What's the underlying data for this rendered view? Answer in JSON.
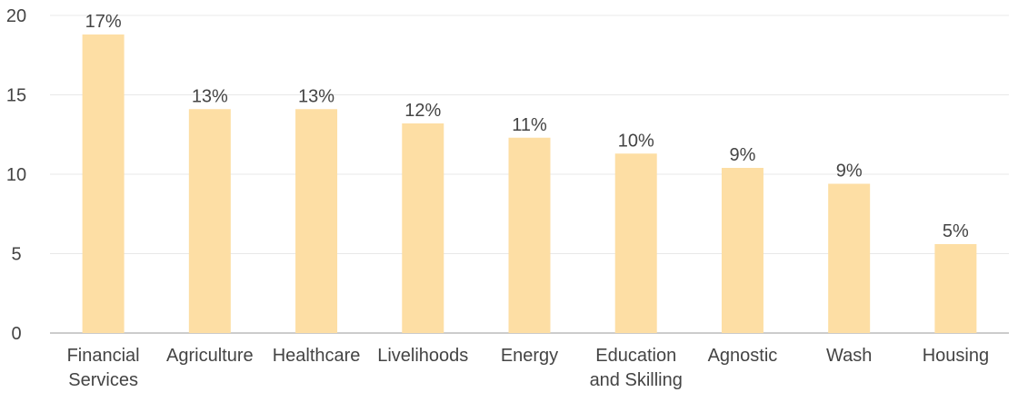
{
  "chart_data": {
    "type": "bar",
    "categories": [
      "Financial Services",
      "Agriculture",
      "Healthcare",
      "Livelihoods",
      "Energy",
      "Education and Skilling",
      "Agnostic",
      "Wash",
      "Housing"
    ],
    "category_lines": [
      [
        "Financial",
        "Services"
      ],
      [
        "Agriculture"
      ],
      [
        "Healthcare"
      ],
      [
        "Livelihoods"
      ],
      [
        "Energy"
      ],
      [
        "Education",
        "and Skilling"
      ],
      [
        "Agnostic"
      ],
      [
        "Wash"
      ],
      [
        "Housing"
      ]
    ],
    "values": [
      18.8,
      14.1,
      14.1,
      13.2,
      12.3,
      11.3,
      10.4,
      9.4,
      5.6
    ],
    "data_labels": [
      "17%",
      "13%",
      "13%",
      "12%",
      "11%",
      "10%",
      "9%",
      "9%",
      "5%"
    ],
    "y_ticks": [
      "0",
      "5",
      "10",
      "15",
      "20"
    ],
    "ylim": [
      0,
      20
    ],
    "grid": true,
    "legend": "none",
    "colors": {
      "bar": "#FDDEA4",
      "grid": "#E8E8E8",
      "text": "#444444",
      "axis": "#999999"
    }
  }
}
